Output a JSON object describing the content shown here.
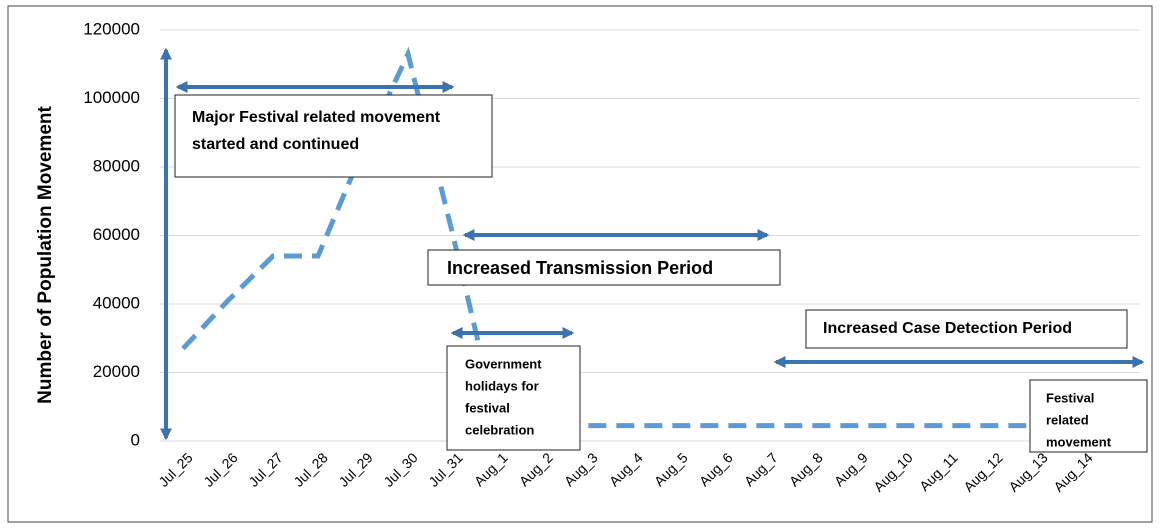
{
  "chart_data": {
    "type": "line",
    "y_label": "Number of Population Movement",
    "categories": [
      "Jul_25",
      "Jul_26",
      "Jul_27",
      "Jul_28",
      "Jul_29",
      "Jul_30",
      "Jul_31",
      "Aug_1",
      "Aug_2",
      "Aug_3",
      "Aug_4",
      "Aug_5",
      "Aug_6",
      "Aug_7",
      "Aug_8",
      "Aug_9",
      "Aug_10",
      "Aug_11",
      "Aug_12",
      "Aug_13",
      "Aug_14"
    ],
    "values": [
      27000,
      41000,
      54000,
      54000,
      85000,
      113000,
      60000,
      4500,
      4500,
      4500,
      4500,
      4500,
      4500,
      4500,
      4500,
      4500,
      4500,
      4500,
      4500,
      4500,
      4500
    ],
    "color": "#5b9bd5",
    "ylim": [
      0,
      120000
    ],
    "yticks": [
      0,
      20000,
      40000,
      60000,
      80000,
      100000,
      120000
    ],
    "grid": true,
    "annotations": [
      [
        "Major Festival related movement",
        "started and continued"
      ],
      [
        "Increased Transmission Period"
      ],
      [
        "Government",
        "holidays for",
        "festival",
        "celebration"
      ],
      [
        "Increased Case Detection Period"
      ],
      [
        "Festival",
        "related",
        "movement"
      ]
    ]
  }
}
